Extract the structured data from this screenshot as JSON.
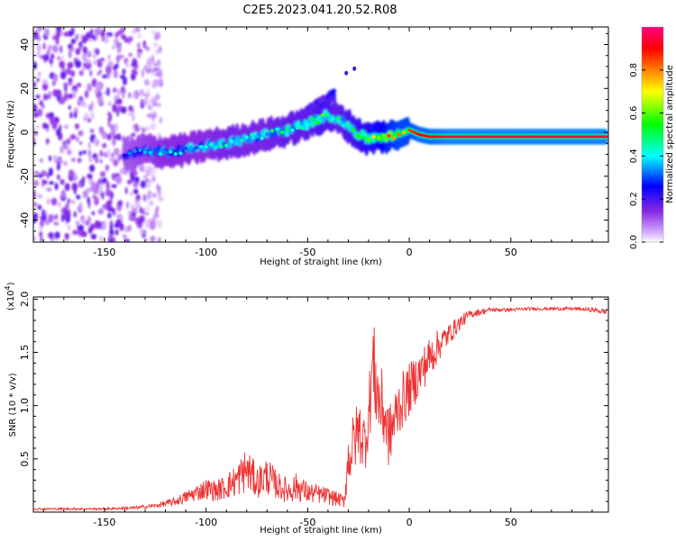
{
  "title": "C2E5.2023.041.20.52.R08",
  "chart_data": [
    {
      "type": "heatmap",
      "title": "C2E5.2023.041.20.52.R08",
      "xlabel": "Height of straight line (km)",
      "ylabel": "Frequency (Hz)",
      "xlim": [
        -185,
        98
      ],
      "ylim": [
        -50,
        48
      ],
      "xticks": [
        -150,
        -100,
        -50,
        0,
        50
      ],
      "yticks": [
        -40,
        -20,
        0,
        20,
        40
      ],
      "xtick_labels": [
        "-150",
        "-100",
        "-50",
        "0",
        "50"
      ],
      "ytick_labels": [
        "-40",
        "-20",
        "0",
        "20",
        "40"
      ],
      "colorbar": {
        "label": "Normalized spectral amplitude",
        "range": [
          0,
          1
        ],
        "ticks": [
          0.0,
          0.2,
          0.4,
          0.6,
          0.8
        ],
        "tick_labels": [
          "0.0",
          "0.2",
          "0.4",
          "0.6",
          "0.8"
        ],
        "colormap": [
          "#ffffff",
          "#8a2be2",
          "#0000ff",
          "#00ffff",
          "#00ff00",
          "#ffff00",
          "#ff8000",
          "#ff0000",
          "#ff00a0"
        ]
      },
      "ridge": {
        "x": [
          -140,
          -130,
          -120,
          -110,
          -100,
          -90,
          -80,
          -70,
          -60,
          -50,
          -45,
          -40,
          -35,
          -30,
          -25,
          -20,
          -15,
          -10,
          -5,
          0,
          5,
          10,
          20,
          40,
          60,
          80,
          97
        ],
        "freq": [
          -11,
          -8,
          -9,
          -8,
          -6,
          -5,
          -3,
          -1,
          1,
          4,
          6,
          8,
          6,
          3,
          -1,
          -3,
          -2,
          -2,
          -1,
          1,
          -1,
          -2,
          -2,
          -2,
          -2,
          -2,
          -2
        ],
        "amplitude": [
          0.3,
          0.35,
          0.4,
          0.4,
          0.4,
          0.45,
          0.45,
          0.45,
          0.5,
          0.5,
          0.55,
          0.55,
          0.5,
          0.55,
          0.6,
          0.65,
          0.7,
          0.8,
          0.85,
          0.85,
          0.9,
          0.9,
          0.95,
          0.95,
          0.95,
          0.95,
          0.95
        ]
      },
      "noise_region_x": [
        -185,
        -130
      ],
      "side_lobe": {
        "x": [
          -55,
          -37
        ],
        "freq": [
          6,
          17
        ],
        "amplitude": 0.25
      },
      "outlier_points": [
        {
          "x": -27,
          "freq": 29
        },
        {
          "x": -31,
          "freq": 27
        }
      ]
    },
    {
      "type": "line",
      "xlabel": "Height of straight line (km)",
      "ylabel": "SNR (10 * v/v)",
      "scale_label": "(x10",
      "scale_exponent": "4",
      "scale_close": ")",
      "xlim": [
        -185,
        98
      ],
      "ylim": [
        0,
        2.02
      ],
      "xticks": [
        -150,
        -100,
        -50,
        0,
        50
      ],
      "yticks": [
        0.5,
        1.0,
        1.5,
        2.0
      ],
      "xtick_labels": [
        "-150",
        "-100",
        "-50",
        "0",
        "50"
      ],
      "ytick_labels": [
        "0.5",
        "1.0",
        "1.5",
        "2.0"
      ],
      "series": [
        {
          "name": "SNR",
          "color": "#ee3333",
          "x": [
            -185,
            -170,
            -150,
            -135,
            -125,
            -115,
            -110,
            -105,
            -100,
            -95,
            -90,
            -85,
            -80,
            -75,
            -70,
            -65,
            -60,
            -55,
            -50,
            -45,
            -40,
            -35,
            -32,
            -30,
            -28,
            -25,
            -22,
            -20,
            -18,
            -15,
            -12,
            -10,
            -5,
            0,
            5,
            10,
            15,
            20,
            25,
            30,
            40,
            50,
            60,
            70,
            80,
            90,
            97
          ],
          "values": [
            0.03,
            0.03,
            0.03,
            0.04,
            0.06,
            0.1,
            0.14,
            0.18,
            0.22,
            0.2,
            0.24,
            0.3,
            0.4,
            0.28,
            0.34,
            0.25,
            0.2,
            0.24,
            0.18,
            0.17,
            0.15,
            0.12,
            0.1,
            0.5,
            0.6,
            0.78,
            0.65,
            0.9,
            1.4,
            1.05,
            0.9,
            0.7,
            1.0,
            1.15,
            1.3,
            1.45,
            1.58,
            1.68,
            1.78,
            1.86,
            1.9,
            1.9,
            1.91,
            1.91,
            1.91,
            1.9,
            1.88
          ],
          "noise_amplitude": [
            0.01,
            0.01,
            0.01,
            0.015,
            0.02,
            0.04,
            0.06,
            0.08,
            0.1,
            0.1,
            0.12,
            0.16,
            0.22,
            0.15,
            0.18,
            0.13,
            0.12,
            0.14,
            0.1,
            0.09,
            0.08,
            0.07,
            0.06,
            0.25,
            0.3,
            0.3,
            0.3,
            0.3,
            0.45,
            0.4,
            0.35,
            0.3,
            0.28,
            0.25,
            0.22,
            0.2,
            0.15,
            0.1,
            0.07,
            0.04,
            0.02,
            0.015,
            0.015,
            0.015,
            0.015,
            0.02,
            0.03
          ]
        }
      ]
    }
  ]
}
